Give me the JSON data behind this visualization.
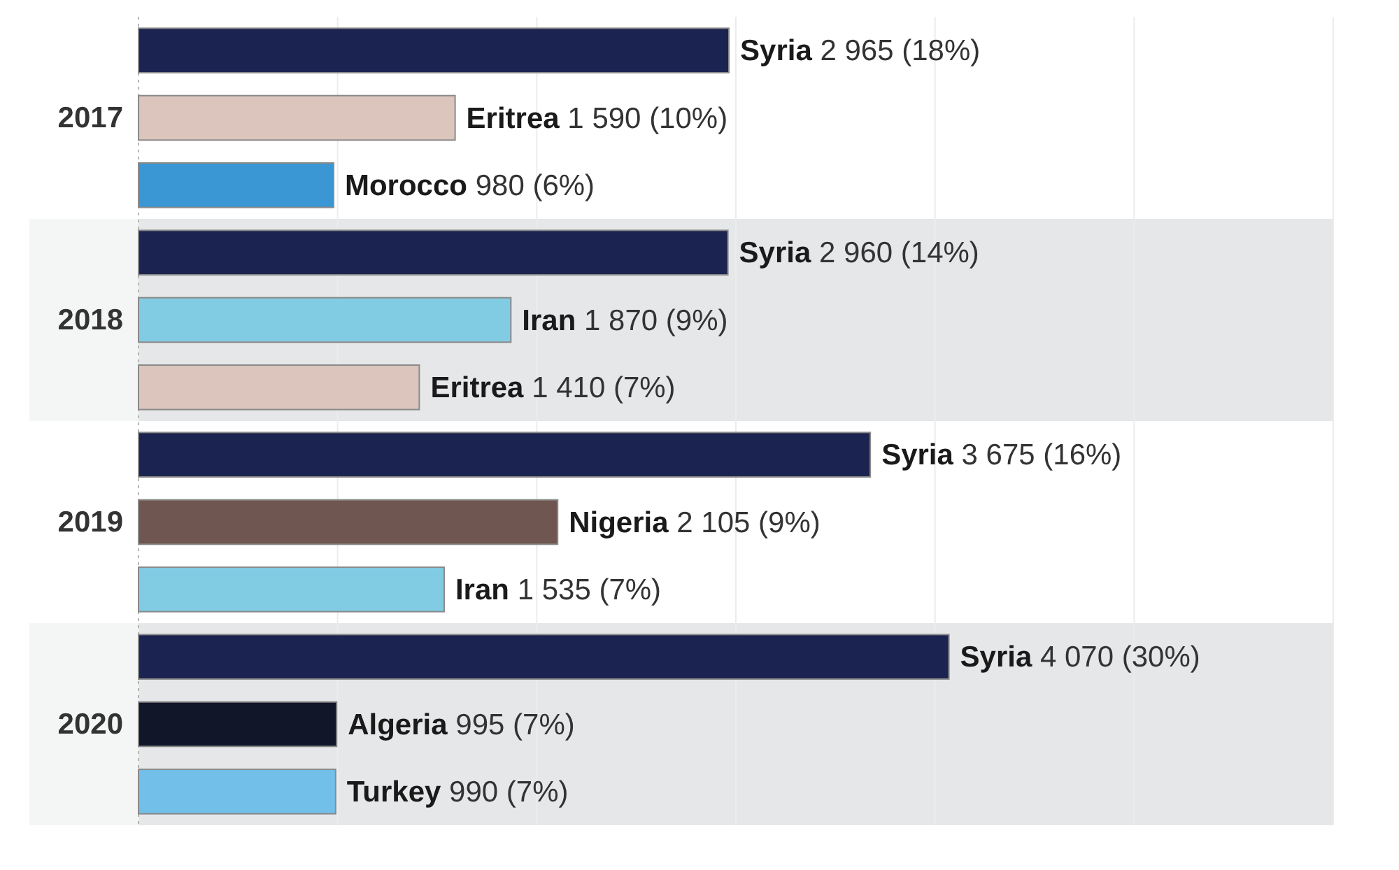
{
  "chart_data": {
    "type": "bar",
    "orientation": "horizontal",
    "categories": [
      null,
      "2017",
      null,
      null,
      "2018",
      null,
      null,
      "2019",
      null,
      null,
      "2020",
      null
    ],
    "values": [
      2965,
      1590,
      980,
      2960,
      1870,
      1410,
      3675,
      2105,
      1535,
      4070,
      995,
      990
    ],
    "colors": [
      "#1b2350",
      "#dbc5bc",
      "#3a97d3",
      "#1b2350",
      "#82cce3",
      "#dbc5bc",
      "#1b2350",
      "#705650",
      "#82cce3",
      "#1b2350",
      "#111629",
      "#72bfea"
    ],
    "value_labels": [
      "Syria 2 965 (18%)",
      "Eritrea 1 590 (10%)",
      "Morocco 980 (6%)",
      "Syria 2 960 (14%)",
      "Iran 1 870 (9%)",
      "Eritrea 1 410 (7%)",
      "Syria 3 675 (16%)",
      "Nigeria 2 105 (9%)",
      "Iran 1 535 (7%)",
      "Syria 4 070 (30%)",
      "Algeria 995 (7%)",
      "Turkey 990 (7%)"
    ],
    "xlim": [
      0,
      6000
    ],
    "xticks": [
      0,
      1000,
      2000,
      3000,
      4000,
      5000,
      6000
    ],
    "grid": "x",
    "tick_labels": "y"
  }
}
